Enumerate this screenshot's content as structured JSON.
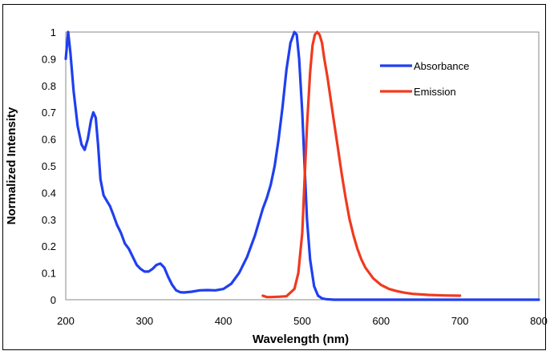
{
  "chart_data": {
    "type": "line",
    "title": "",
    "xlabel": "Wavelength (nm)",
    "ylabel": "Normalized Intensity",
    "xlim": [
      200,
      800
    ],
    "ylim": [
      0,
      1
    ],
    "x_ticks": [
      "200",
      "300",
      "400",
      "500",
      "600",
      "700",
      "800"
    ],
    "y_ticks": [
      "0",
      "0.1",
      "0.2",
      "0.3",
      "0.4",
      "0.5",
      "0.6",
      "0.7",
      "0.8",
      "0.9",
      "1"
    ],
    "grid": false,
    "legend_position": "top-right",
    "series": [
      {
        "name": "Absorbance",
        "color": "#1f3ff0",
        "x": [
          200,
          203,
          206,
          210,
          215,
          220,
          224,
          228,
          232,
          235,
          238,
          241,
          244,
          248,
          252,
          256,
          260,
          265,
          270,
          275,
          280,
          285,
          290,
          295,
          300,
          305,
          310,
          315,
          320,
          325,
          330,
          335,
          340,
          345,
          350,
          360,
          370,
          380,
          390,
          400,
          410,
          420,
          430,
          440,
          450,
          455,
          460,
          465,
          470,
          475,
          480,
          485,
          490,
          493,
          496,
          500,
          503,
          506,
          510,
          515,
          520,
          525,
          530,
          540,
          560,
          600,
          700,
          800
        ],
        "y": [
          0.9,
          1.0,
          0.92,
          0.78,
          0.65,
          0.58,
          0.56,
          0.6,
          0.67,
          0.7,
          0.68,
          0.58,
          0.45,
          0.39,
          0.37,
          0.35,
          0.32,
          0.28,
          0.25,
          0.21,
          0.19,
          0.16,
          0.13,
          0.115,
          0.105,
          0.105,
          0.115,
          0.13,
          0.135,
          0.12,
          0.085,
          0.055,
          0.035,
          0.028,
          0.027,
          0.03,
          0.035,
          0.036,
          0.035,
          0.04,
          0.06,
          0.1,
          0.16,
          0.24,
          0.34,
          0.38,
          0.43,
          0.5,
          0.6,
          0.72,
          0.86,
          0.96,
          1.0,
          0.99,
          0.9,
          0.7,
          0.5,
          0.3,
          0.15,
          0.05,
          0.015,
          0.005,
          0.002,
          0.0,
          0.0,
          0.0,
          0.0,
          0.0
        ]
      },
      {
        "name": "Emission",
        "color": "#f03a1f",
        "x": [
          450,
          455,
          460,
          470,
          480,
          490,
          495,
          500,
          503,
          506,
          510,
          513,
          516,
          519,
          522,
          525,
          528,
          532,
          536,
          540,
          545,
          550,
          555,
          560,
          565,
          570,
          575,
          580,
          590,
          600,
          610,
          620,
          630,
          640,
          660,
          680,
          700
        ],
        "y": [
          0.015,
          0.01,
          0.01,
          0.011,
          0.013,
          0.04,
          0.1,
          0.25,
          0.45,
          0.65,
          0.85,
          0.95,
          0.99,
          1.0,
          0.99,
          0.96,
          0.9,
          0.83,
          0.75,
          0.67,
          0.57,
          0.47,
          0.38,
          0.3,
          0.24,
          0.19,
          0.15,
          0.12,
          0.08,
          0.055,
          0.04,
          0.032,
          0.026,
          0.022,
          0.018,
          0.016,
          0.015
        ]
      }
    ]
  }
}
